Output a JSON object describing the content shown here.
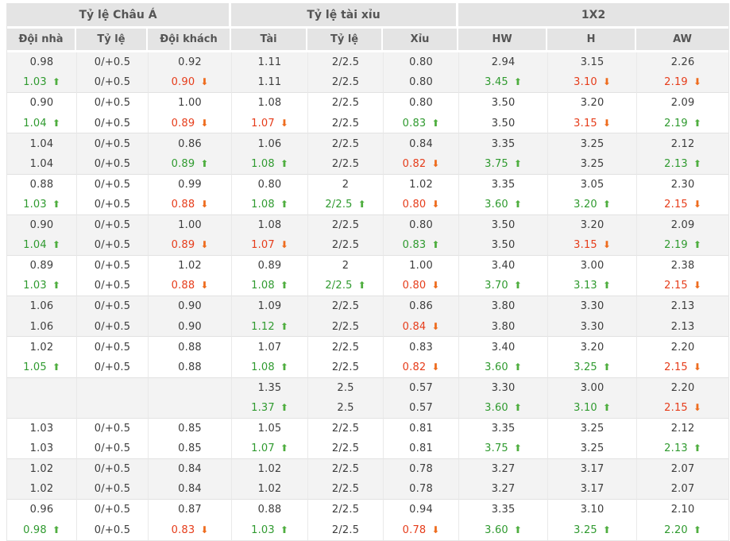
{
  "table": {
    "header_groups": [
      {
        "label": "Tỷ lệ Châu Á"
      },
      {
        "label": "Tỷ lệ tài xỉu"
      },
      {
        "label": "1X2"
      }
    ],
    "columns": [
      "Đội nhà",
      "Tỷ lệ",
      "Đội khách",
      "Tài",
      "Tỷ lệ",
      "Xỉu",
      "HW",
      "H",
      "AW"
    ],
    "groups": [
      {
        "rows": [
          [
            {
              "v": "0.98"
            },
            {
              "v": "0/+0.5"
            },
            {
              "v": "0.92"
            },
            {
              "v": "1.11"
            },
            {
              "v": "2/2.5"
            },
            {
              "v": "0.80"
            },
            {
              "v": "2.94"
            },
            {
              "v": "3.15"
            },
            {
              "v": "2.26"
            }
          ],
          [
            {
              "v": "1.03",
              "d": "up"
            },
            {
              "v": "0/+0.5"
            },
            {
              "v": "0.90",
              "d": "down"
            },
            {
              "v": "1.11"
            },
            {
              "v": "2/2.5"
            },
            {
              "v": "0.80"
            },
            {
              "v": "3.45",
              "d": "up"
            },
            {
              "v": "3.10",
              "d": "down"
            },
            {
              "v": "2.19",
              "d": "down"
            }
          ]
        ]
      },
      {
        "rows": [
          [
            {
              "v": "0.90"
            },
            {
              "v": "0/+0.5"
            },
            {
              "v": "1.00"
            },
            {
              "v": "1.08"
            },
            {
              "v": "2/2.5"
            },
            {
              "v": "0.80"
            },
            {
              "v": "3.50"
            },
            {
              "v": "3.20"
            },
            {
              "v": "2.09"
            }
          ],
          [
            {
              "v": "1.04",
              "d": "up"
            },
            {
              "v": "0/+0.5"
            },
            {
              "v": "0.89",
              "d": "down"
            },
            {
              "v": "1.07",
              "d": "down"
            },
            {
              "v": "2/2.5"
            },
            {
              "v": "0.83",
              "d": "up"
            },
            {
              "v": "3.50"
            },
            {
              "v": "3.15",
              "d": "down"
            },
            {
              "v": "2.19",
              "d": "up"
            }
          ]
        ]
      },
      {
        "rows": [
          [
            {
              "v": "1.04"
            },
            {
              "v": "0/+0.5"
            },
            {
              "v": "0.86"
            },
            {
              "v": "1.06"
            },
            {
              "v": "2/2.5"
            },
            {
              "v": "0.84"
            },
            {
              "v": "3.35"
            },
            {
              "v": "3.25"
            },
            {
              "v": "2.12"
            }
          ],
          [
            {
              "v": "1.04"
            },
            {
              "v": "0/+0.5"
            },
            {
              "v": "0.89",
              "d": "up"
            },
            {
              "v": "1.08",
              "d": "up"
            },
            {
              "v": "2/2.5"
            },
            {
              "v": "0.82",
              "d": "down"
            },
            {
              "v": "3.75",
              "d": "up"
            },
            {
              "v": "3.25"
            },
            {
              "v": "2.13",
              "d": "up"
            }
          ]
        ]
      },
      {
        "rows": [
          [
            {
              "v": "0.88"
            },
            {
              "v": "0/+0.5"
            },
            {
              "v": "0.99"
            },
            {
              "v": "0.80"
            },
            {
              "v": "2"
            },
            {
              "v": "1.02"
            },
            {
              "v": "3.35"
            },
            {
              "v": "3.05"
            },
            {
              "v": "2.30"
            }
          ],
          [
            {
              "v": "1.03",
              "d": "up"
            },
            {
              "v": "0/+0.5"
            },
            {
              "v": "0.88",
              "d": "down"
            },
            {
              "v": "1.08",
              "d": "up"
            },
            {
              "v": "2/2.5",
              "d": "up"
            },
            {
              "v": "0.80",
              "d": "down"
            },
            {
              "v": "3.60",
              "d": "up"
            },
            {
              "v": "3.20",
              "d": "up"
            },
            {
              "v": "2.15",
              "d": "down"
            }
          ]
        ]
      },
      {
        "rows": [
          [
            {
              "v": "0.90"
            },
            {
              "v": "0/+0.5"
            },
            {
              "v": "1.00"
            },
            {
              "v": "1.08"
            },
            {
              "v": "2/2.5"
            },
            {
              "v": "0.80"
            },
            {
              "v": "3.50"
            },
            {
              "v": "3.20"
            },
            {
              "v": "2.09"
            }
          ],
          [
            {
              "v": "1.04",
              "d": "up"
            },
            {
              "v": "0/+0.5"
            },
            {
              "v": "0.89",
              "d": "down"
            },
            {
              "v": "1.07",
              "d": "down"
            },
            {
              "v": "2/2.5"
            },
            {
              "v": "0.83",
              "d": "up"
            },
            {
              "v": "3.50"
            },
            {
              "v": "3.15",
              "d": "down"
            },
            {
              "v": "2.19",
              "d": "up"
            }
          ]
        ]
      },
      {
        "rows": [
          [
            {
              "v": "0.89"
            },
            {
              "v": "0/+0.5"
            },
            {
              "v": "1.02"
            },
            {
              "v": "0.89"
            },
            {
              "v": "2"
            },
            {
              "v": "1.00"
            },
            {
              "v": "3.40"
            },
            {
              "v": "3.00"
            },
            {
              "v": "2.38"
            }
          ],
          [
            {
              "v": "1.03",
              "d": "up"
            },
            {
              "v": "0/+0.5"
            },
            {
              "v": "0.88",
              "d": "down"
            },
            {
              "v": "1.08",
              "d": "up"
            },
            {
              "v": "2/2.5",
              "d": "up"
            },
            {
              "v": "0.80",
              "d": "down"
            },
            {
              "v": "3.70",
              "d": "up"
            },
            {
              "v": "3.13",
              "d": "up"
            },
            {
              "v": "2.15",
              "d": "down"
            }
          ]
        ]
      },
      {
        "rows": [
          [
            {
              "v": "1.06"
            },
            {
              "v": "0/+0.5"
            },
            {
              "v": "0.90"
            },
            {
              "v": "1.09"
            },
            {
              "v": "2/2.5"
            },
            {
              "v": "0.86"
            },
            {
              "v": "3.80"
            },
            {
              "v": "3.30"
            },
            {
              "v": "2.13"
            }
          ],
          [
            {
              "v": "1.06"
            },
            {
              "v": "0/+0.5"
            },
            {
              "v": "0.90"
            },
            {
              "v": "1.12",
              "d": "up"
            },
            {
              "v": "2/2.5"
            },
            {
              "v": "0.84",
              "d": "down"
            },
            {
              "v": "3.80"
            },
            {
              "v": "3.30"
            },
            {
              "v": "2.13"
            }
          ]
        ]
      },
      {
        "rows": [
          [
            {
              "v": "1.02"
            },
            {
              "v": "0/+0.5"
            },
            {
              "v": "0.88"
            },
            {
              "v": "1.07"
            },
            {
              "v": "2/2.5"
            },
            {
              "v": "0.83"
            },
            {
              "v": "3.40"
            },
            {
              "v": "3.20"
            },
            {
              "v": "2.20"
            }
          ],
          [
            {
              "v": "1.05",
              "d": "up"
            },
            {
              "v": "0/+0.5"
            },
            {
              "v": "0.88"
            },
            {
              "v": "1.08",
              "d": "up"
            },
            {
              "v": "2/2.5"
            },
            {
              "v": "0.82",
              "d": "down"
            },
            {
              "v": "3.60",
              "d": "up"
            },
            {
              "v": "3.25",
              "d": "up"
            },
            {
              "v": "2.15",
              "d": "down"
            }
          ]
        ]
      },
      {
        "rows": [
          [
            {
              "v": ""
            },
            {
              "v": ""
            },
            {
              "v": ""
            },
            {
              "v": "1.35"
            },
            {
              "v": "2.5"
            },
            {
              "v": "0.57"
            },
            {
              "v": "3.30"
            },
            {
              "v": "3.00"
            },
            {
              "v": "2.20"
            }
          ],
          [
            {
              "v": ""
            },
            {
              "v": ""
            },
            {
              "v": ""
            },
            {
              "v": "1.37",
              "d": "up"
            },
            {
              "v": "2.5"
            },
            {
              "v": "0.57"
            },
            {
              "v": "3.60",
              "d": "up"
            },
            {
              "v": "3.10",
              "d": "up"
            },
            {
              "v": "2.15",
              "d": "down"
            }
          ]
        ]
      },
      {
        "rows": [
          [
            {
              "v": "1.03"
            },
            {
              "v": "0/+0.5"
            },
            {
              "v": "0.85"
            },
            {
              "v": "1.05"
            },
            {
              "v": "2/2.5"
            },
            {
              "v": "0.81"
            },
            {
              "v": "3.35"
            },
            {
              "v": "3.25"
            },
            {
              "v": "2.12"
            }
          ],
          [
            {
              "v": "1.03"
            },
            {
              "v": "0/+0.5"
            },
            {
              "v": "0.85"
            },
            {
              "v": "1.07",
              "d": "up"
            },
            {
              "v": "2/2.5"
            },
            {
              "v": "0.81"
            },
            {
              "v": "3.75",
              "d": "up"
            },
            {
              "v": "3.25"
            },
            {
              "v": "2.13",
              "d": "up"
            }
          ]
        ]
      },
      {
        "rows": [
          [
            {
              "v": "1.02"
            },
            {
              "v": "0/+0.5"
            },
            {
              "v": "0.84"
            },
            {
              "v": "1.02"
            },
            {
              "v": "2/2.5"
            },
            {
              "v": "0.78"
            },
            {
              "v": "3.27"
            },
            {
              "v": "3.17"
            },
            {
              "v": "2.07"
            }
          ],
          [
            {
              "v": "1.02"
            },
            {
              "v": "0/+0.5"
            },
            {
              "v": "0.84"
            },
            {
              "v": "1.02"
            },
            {
              "v": "2/2.5"
            },
            {
              "v": "0.78"
            },
            {
              "v": "3.27"
            },
            {
              "v": "3.17"
            },
            {
              "v": "2.07"
            }
          ]
        ]
      },
      {
        "rows": [
          [
            {
              "v": "0.96"
            },
            {
              "v": "0/+0.5"
            },
            {
              "v": "0.87"
            },
            {
              "v": "0.88"
            },
            {
              "v": "2/2.5"
            },
            {
              "v": "0.94"
            },
            {
              "v": "3.35"
            },
            {
              "v": "3.10"
            },
            {
              "v": "2.10"
            }
          ],
          [
            {
              "v": "0.98",
              "d": "up"
            },
            {
              "v": "0/+0.5"
            },
            {
              "v": "0.83",
              "d": "down"
            },
            {
              "v": "1.03",
              "d": "up"
            },
            {
              "v": "2/2.5"
            },
            {
              "v": "0.78",
              "d": "down"
            },
            {
              "v": "3.60",
              "d": "up"
            },
            {
              "v": "3.25",
              "d": "up"
            },
            {
              "v": "2.20",
              "d": "up"
            }
          ]
        ]
      }
    ]
  },
  "icons": {
    "up_arrow": "⬆",
    "down_arrow": "⬇"
  },
  "colors": {
    "up_text": "#2f9a2f",
    "up_arrow": "#4fae3f",
    "down_text": "#e63c1a",
    "down_arrow": "#ee6c1e",
    "header_bg": "#e4e4e4",
    "alt_row_bg": "#f3f3f3",
    "text": "#3d3d3d",
    "header_text": "#555555"
  }
}
